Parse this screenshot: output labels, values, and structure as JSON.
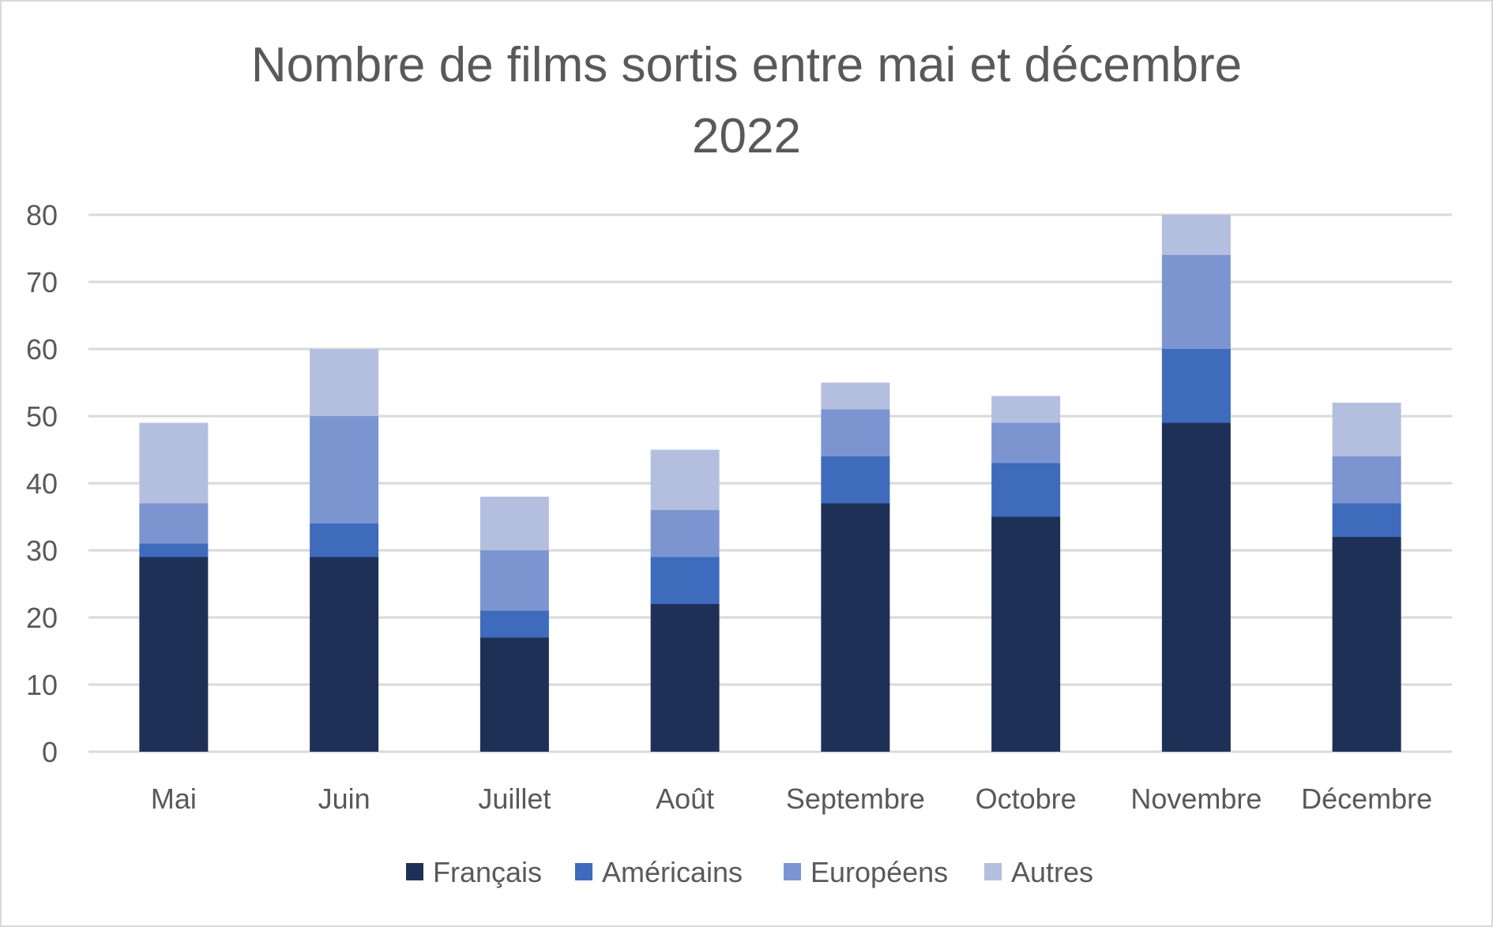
{
  "chart_data": {
    "type": "bar",
    "stacked": true,
    "title": "Nombre de films sortis entre mai et décembre 2022",
    "title_lines": [
      "Nombre de films sortis entre mai et décembre",
      "2022"
    ],
    "xlabel": "",
    "ylabel": "",
    "categories": [
      "Mai",
      "Juin",
      "Juillet",
      "Août",
      "Septembre",
      "Octobre",
      "Novembre",
      "Décembre"
    ],
    "series": [
      {
        "name": "Français",
        "color": "#1f3057",
        "values": [
          29,
          29,
          17,
          22,
          37,
          35,
          49,
          32
        ]
      },
      {
        "name": "Américains",
        "color": "#3e6bbb",
        "values": [
          2,
          5,
          4,
          7,
          7,
          8,
          11,
          5
        ]
      },
      {
        "name": "Européens",
        "color": "#7c95d1",
        "values": [
          6,
          16,
          9,
          7,
          7,
          6,
          14,
          7
        ]
      },
      {
        "name": "Autres",
        "color": "#b4bfe0",
        "values": [
          12,
          10,
          8,
          9,
          4,
          4,
          6,
          8
        ]
      }
    ],
    "ylim": [
      0,
      80
    ],
    "yticks": [
      0,
      10,
      20,
      30,
      40,
      50,
      60,
      70,
      80
    ],
    "grid": true,
    "legend_position": "bottom",
    "colors": {
      "text": "#595959",
      "grid": "#d9d9d9",
      "border": "#d9d9d9"
    }
  }
}
